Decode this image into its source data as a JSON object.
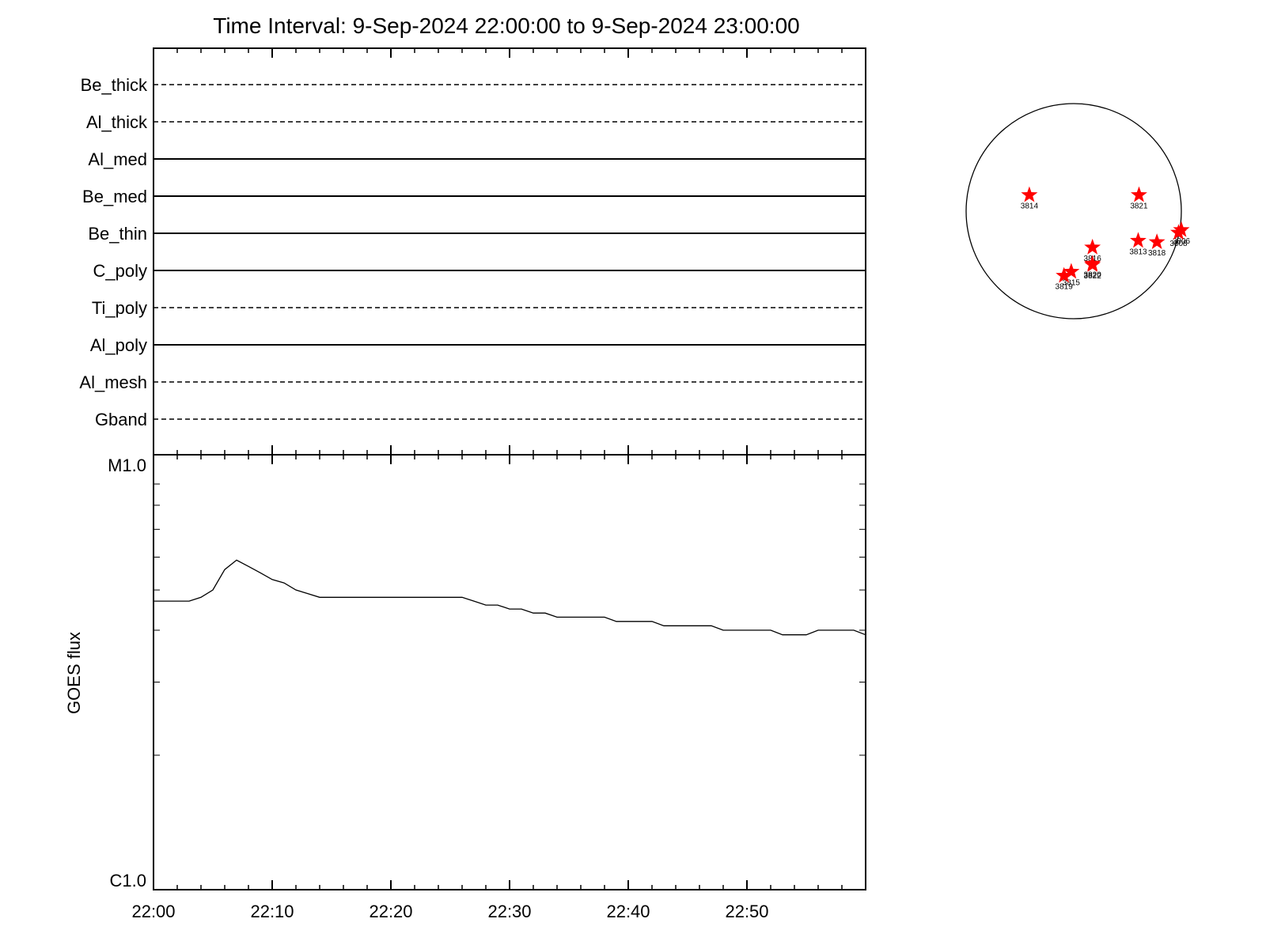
{
  "title": "Time Interval:  9-Sep-2024 22:00:00 to  9-Sep-2024 23:00:00",
  "colors": {
    "axes": "#000000",
    "flux_line": "#000000",
    "marker": "#ff0000"
  },
  "chart_data": [
    {
      "type": "line",
      "panel": "attenuator-filter-timeline",
      "categories": [
        "Be_thick",
        "Al_thick",
        "Al_med",
        "Be_med",
        "Be_thin",
        "C_poly",
        "Ti_poly",
        "Al_poly",
        "Al_mesh",
        "Gband"
      ],
      "line_styles": [
        "dashed",
        "dashed",
        "solid",
        "solid",
        "solid",
        "solid",
        "dashed",
        "solid",
        "dashed",
        "dashed"
      ],
      "x_range": [
        "22:00",
        "23:00"
      ]
    },
    {
      "type": "line",
      "panel": "goes-flux",
      "ylabel": "GOES flux",
      "y_scale": "log",
      "yticks": [
        "M1.0",
        "C1.0"
      ],
      "ylim": [
        "C1.0",
        "M1.0"
      ],
      "xticks": [
        "22:00",
        "22:10",
        "22:20",
        "22:30",
        "22:40",
        "22:50"
      ],
      "x_range": [
        "22:00",
        "23:00"
      ],
      "series": [
        {
          "x": [
            "22:00",
            "22:01",
            "22:02",
            "22:03",
            "22:04",
            "22:05",
            "22:06",
            "22:07",
            "22:08",
            "22:09",
            "22:10",
            "22:11",
            "22:12",
            "22:13",
            "22:14",
            "22:15",
            "22:16",
            "22:17",
            "22:18",
            "22:19",
            "22:20",
            "22:21",
            "22:22",
            "22:23",
            "22:24",
            "22:25",
            "22:26",
            "22:27",
            "22:28",
            "22:29",
            "22:30",
            "22:31",
            "22:32",
            "22:33",
            "22:34",
            "22:35",
            "22:36",
            "22:37",
            "22:38",
            "22:39",
            "22:40",
            "22:41",
            "22:42",
            "22:43",
            "22:44",
            "22:45",
            "22:46",
            "22:47",
            "22:48",
            "22:49",
            "22:50",
            "22:51",
            "22:52",
            "22:53",
            "22:54",
            "22:55",
            "22:56",
            "22:57",
            "22:58",
            "22:59",
            "23:00"
          ],
          "y": [
            "C4.7",
            "C4.7",
            "C4.7",
            "C4.7",
            "C4.8",
            "C5.0",
            "C5.6",
            "C5.9",
            "C5.7",
            "C5.5",
            "C5.3",
            "C5.2",
            "C5.0",
            "C4.9",
            "C4.8",
            "C4.8",
            "C4.8",
            "C4.8",
            "C4.8",
            "C4.8",
            "C4.8",
            "C4.8",
            "C4.8",
            "C4.8",
            "C4.8",
            "C4.8",
            "C4.8",
            "C4.7",
            "C4.6",
            "C4.6",
            "C4.5",
            "C4.5",
            "C4.4",
            "C4.4",
            "C4.3",
            "C4.3",
            "C4.3",
            "C4.3",
            "C4.3",
            "C4.2",
            "C4.2",
            "C4.2",
            "C4.2",
            "C4.1",
            "C4.1",
            "C4.1",
            "C4.1",
            "C4.1",
            "C4.0",
            "C4.0",
            "C4.0",
            "C4.0",
            "C4.0",
            "C3.9",
            "C3.9",
            "C3.9",
            "C4.0",
            "C4.0",
            "C4.0",
            "C4.0",
            "C3.9"
          ],
          "values_m2": [
            4.7e-06,
            4.7e-06,
            4.7e-06,
            4.7e-06,
            4.8e-06,
            5e-06,
            5.6e-06,
            5.9e-06,
            5.7e-06,
            5.5e-06,
            5.3e-06,
            5.2e-06,
            5e-06,
            4.9e-06,
            4.8e-06,
            4.8e-06,
            4.8e-06,
            4.8e-06,
            4.8e-06,
            4.8e-06,
            4.8e-06,
            4.8e-06,
            4.8e-06,
            4.8e-06,
            4.8e-06,
            4.8e-06,
            4.8e-06,
            4.7e-06,
            4.6e-06,
            4.6e-06,
            4.5e-06,
            4.5e-06,
            4.4e-06,
            4.4e-06,
            4.3e-06,
            4.3e-06,
            4.3e-06,
            4.3e-06,
            4.3e-06,
            4.2e-06,
            4.2e-06,
            4.2e-06,
            4.2e-06,
            4.1e-06,
            4.1e-06,
            4.1e-06,
            4.1e-06,
            4.1e-06,
            4e-06,
            4e-06,
            4e-06,
            4e-06,
            4e-06,
            3.9e-06,
            3.9e-06,
            3.9e-06,
            4e-06,
            4e-06,
            4e-06,
            4e-06,
            3.9e-06
          ]
        }
      ]
    },
    {
      "type": "scatter",
      "panel": "solar-disk-active-regions",
      "marker": "star",
      "x_units": "arcsec (heliocentric, solar radius = 960)",
      "points": [
        {
          "label": "3814",
          "x": -396,
          "y": 144
        },
        {
          "label": "3821",
          "x": 582,
          "y": 144
        },
        {
          "label": "3806",
          "x": 960,
          "y": -168
        },
        {
          "label": "3808",
          "x": 935,
          "y": -192
        },
        {
          "label": "3813",
          "x": 575,
          "y": -264
        },
        {
          "label": "3818",
          "x": 742,
          "y": -276
        },
        {
          "label": "3816",
          "x": 167,
          "y": -324
        },
        {
          "label": "3820",
          "x": 167,
          "y": -468
        },
        {
          "label": "3822",
          "x": 167,
          "y": -480
        },
        {
          "label": "3815",
          "x": -22,
          "y": -540
        },
        {
          "label": "3819",
          "x": -87,
          "y": -576
        }
      ]
    }
  ]
}
